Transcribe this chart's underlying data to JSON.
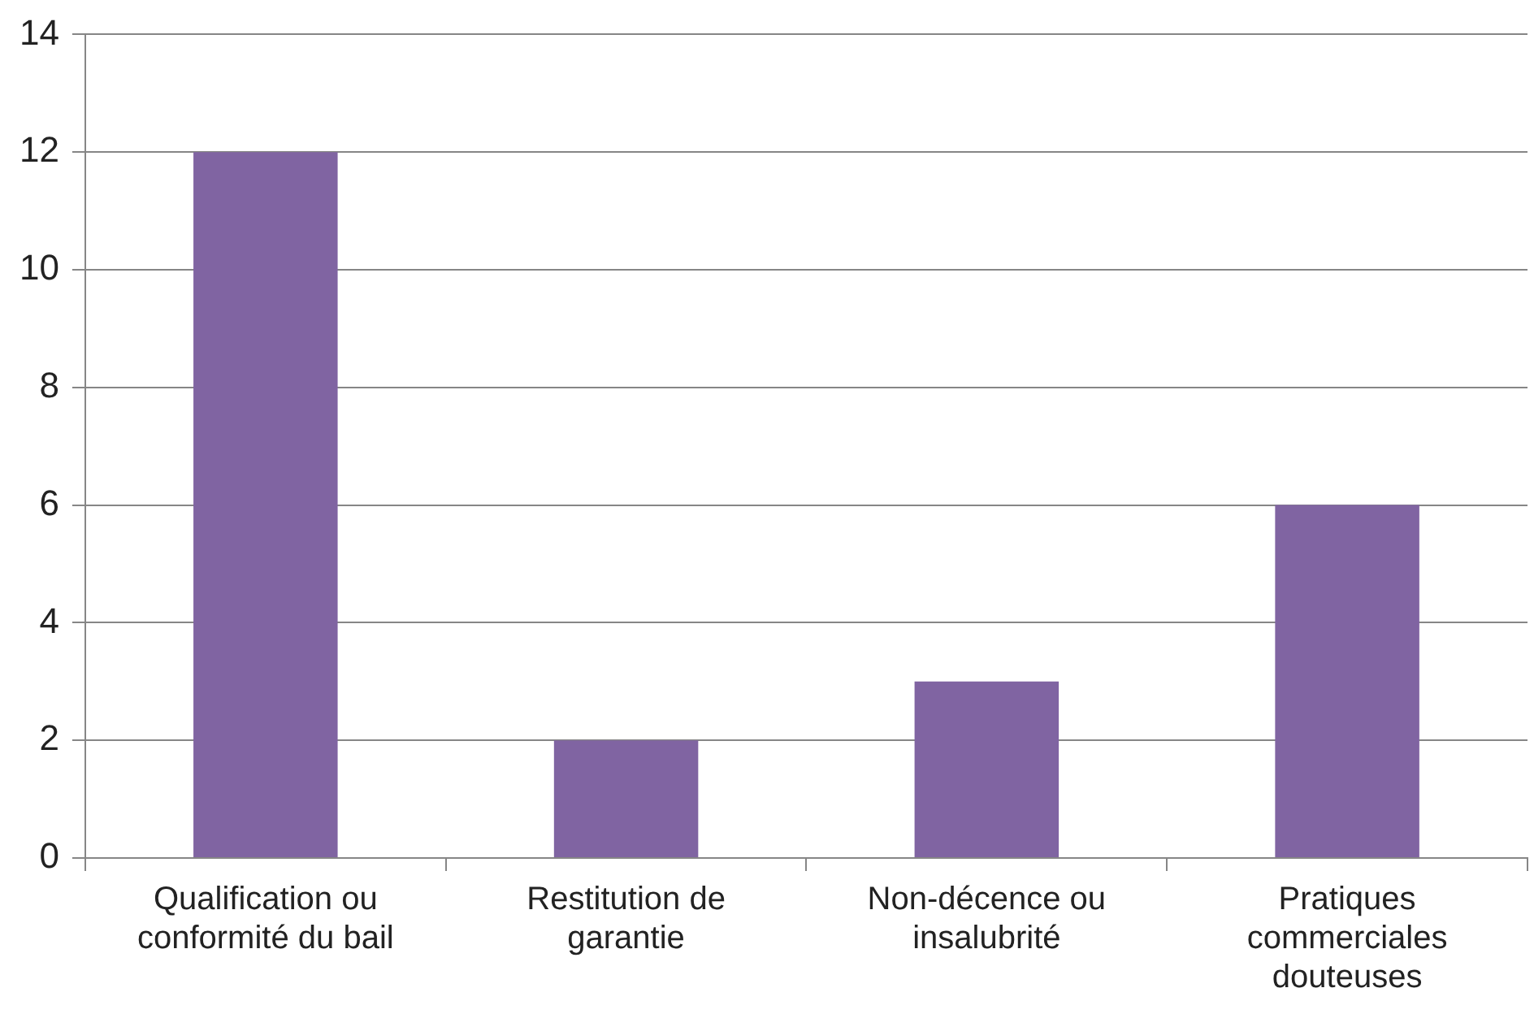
{
  "chart_data": {
    "type": "bar",
    "categories": [
      "Qualification ou conformité du bail",
      "Restitution de garantie",
      "Non-décence ou insalubrité",
      "Pratiques commerciales douteuses"
    ],
    "values": [
      12,
      2,
      3,
      6
    ],
    "color": "#8064a2",
    "ylim": [
      0,
      14
    ],
    "yticks": [
      0,
      2,
      4,
      6,
      8,
      10,
      12,
      14
    ],
    "grid": "y",
    "legend": false
  }
}
